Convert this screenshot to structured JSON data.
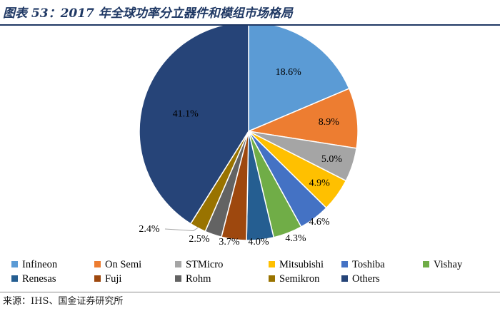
{
  "title": "图表 53：2017 年全球功率分立器件和模组市场格局",
  "source": "来源：IHS、国金证券研究所",
  "chart_data": {
    "type": "pie",
    "title": "",
    "start_angle_deg": 0,
    "direction": "clockwise",
    "legend_position": "bottom",
    "slices": [
      {
        "name": "Infineon",
        "value": 18.6,
        "label": "18.6%",
        "color": "#5b9bd5"
      },
      {
        "name": "On Semi",
        "value": 8.9,
        "label": "8.9%",
        "color": "#ed7d31"
      },
      {
        "name": "STMicro",
        "value": 5.0,
        "label": "5.0%",
        "color": "#a5a5a5"
      },
      {
        "name": "Mitsubishi",
        "value": 4.9,
        "label": "4.9%",
        "color": "#ffc000"
      },
      {
        "name": "Toshiba",
        "value": 4.6,
        "label": "4.6%",
        "color": "#4472c4"
      },
      {
        "name": "Vishay",
        "value": 4.3,
        "label": "4.3%",
        "color": "#70ad47"
      },
      {
        "name": "Renesas",
        "value": 4.0,
        "label": "4.0%",
        "color": "#255e91"
      },
      {
        "name": "Fuji",
        "value": 3.7,
        "label": "3.7%",
        "color": "#9e480e"
      },
      {
        "name": "Rohm",
        "value": 2.5,
        "label": "2.5%",
        "color": "#636363"
      },
      {
        "name": "Semikron",
        "value": 2.4,
        "label": "2.4%",
        "color": "#997300"
      },
      {
        "name": "Others",
        "value": 41.1,
        "label": "41.1%",
        "color": "#264478"
      }
    ]
  }
}
